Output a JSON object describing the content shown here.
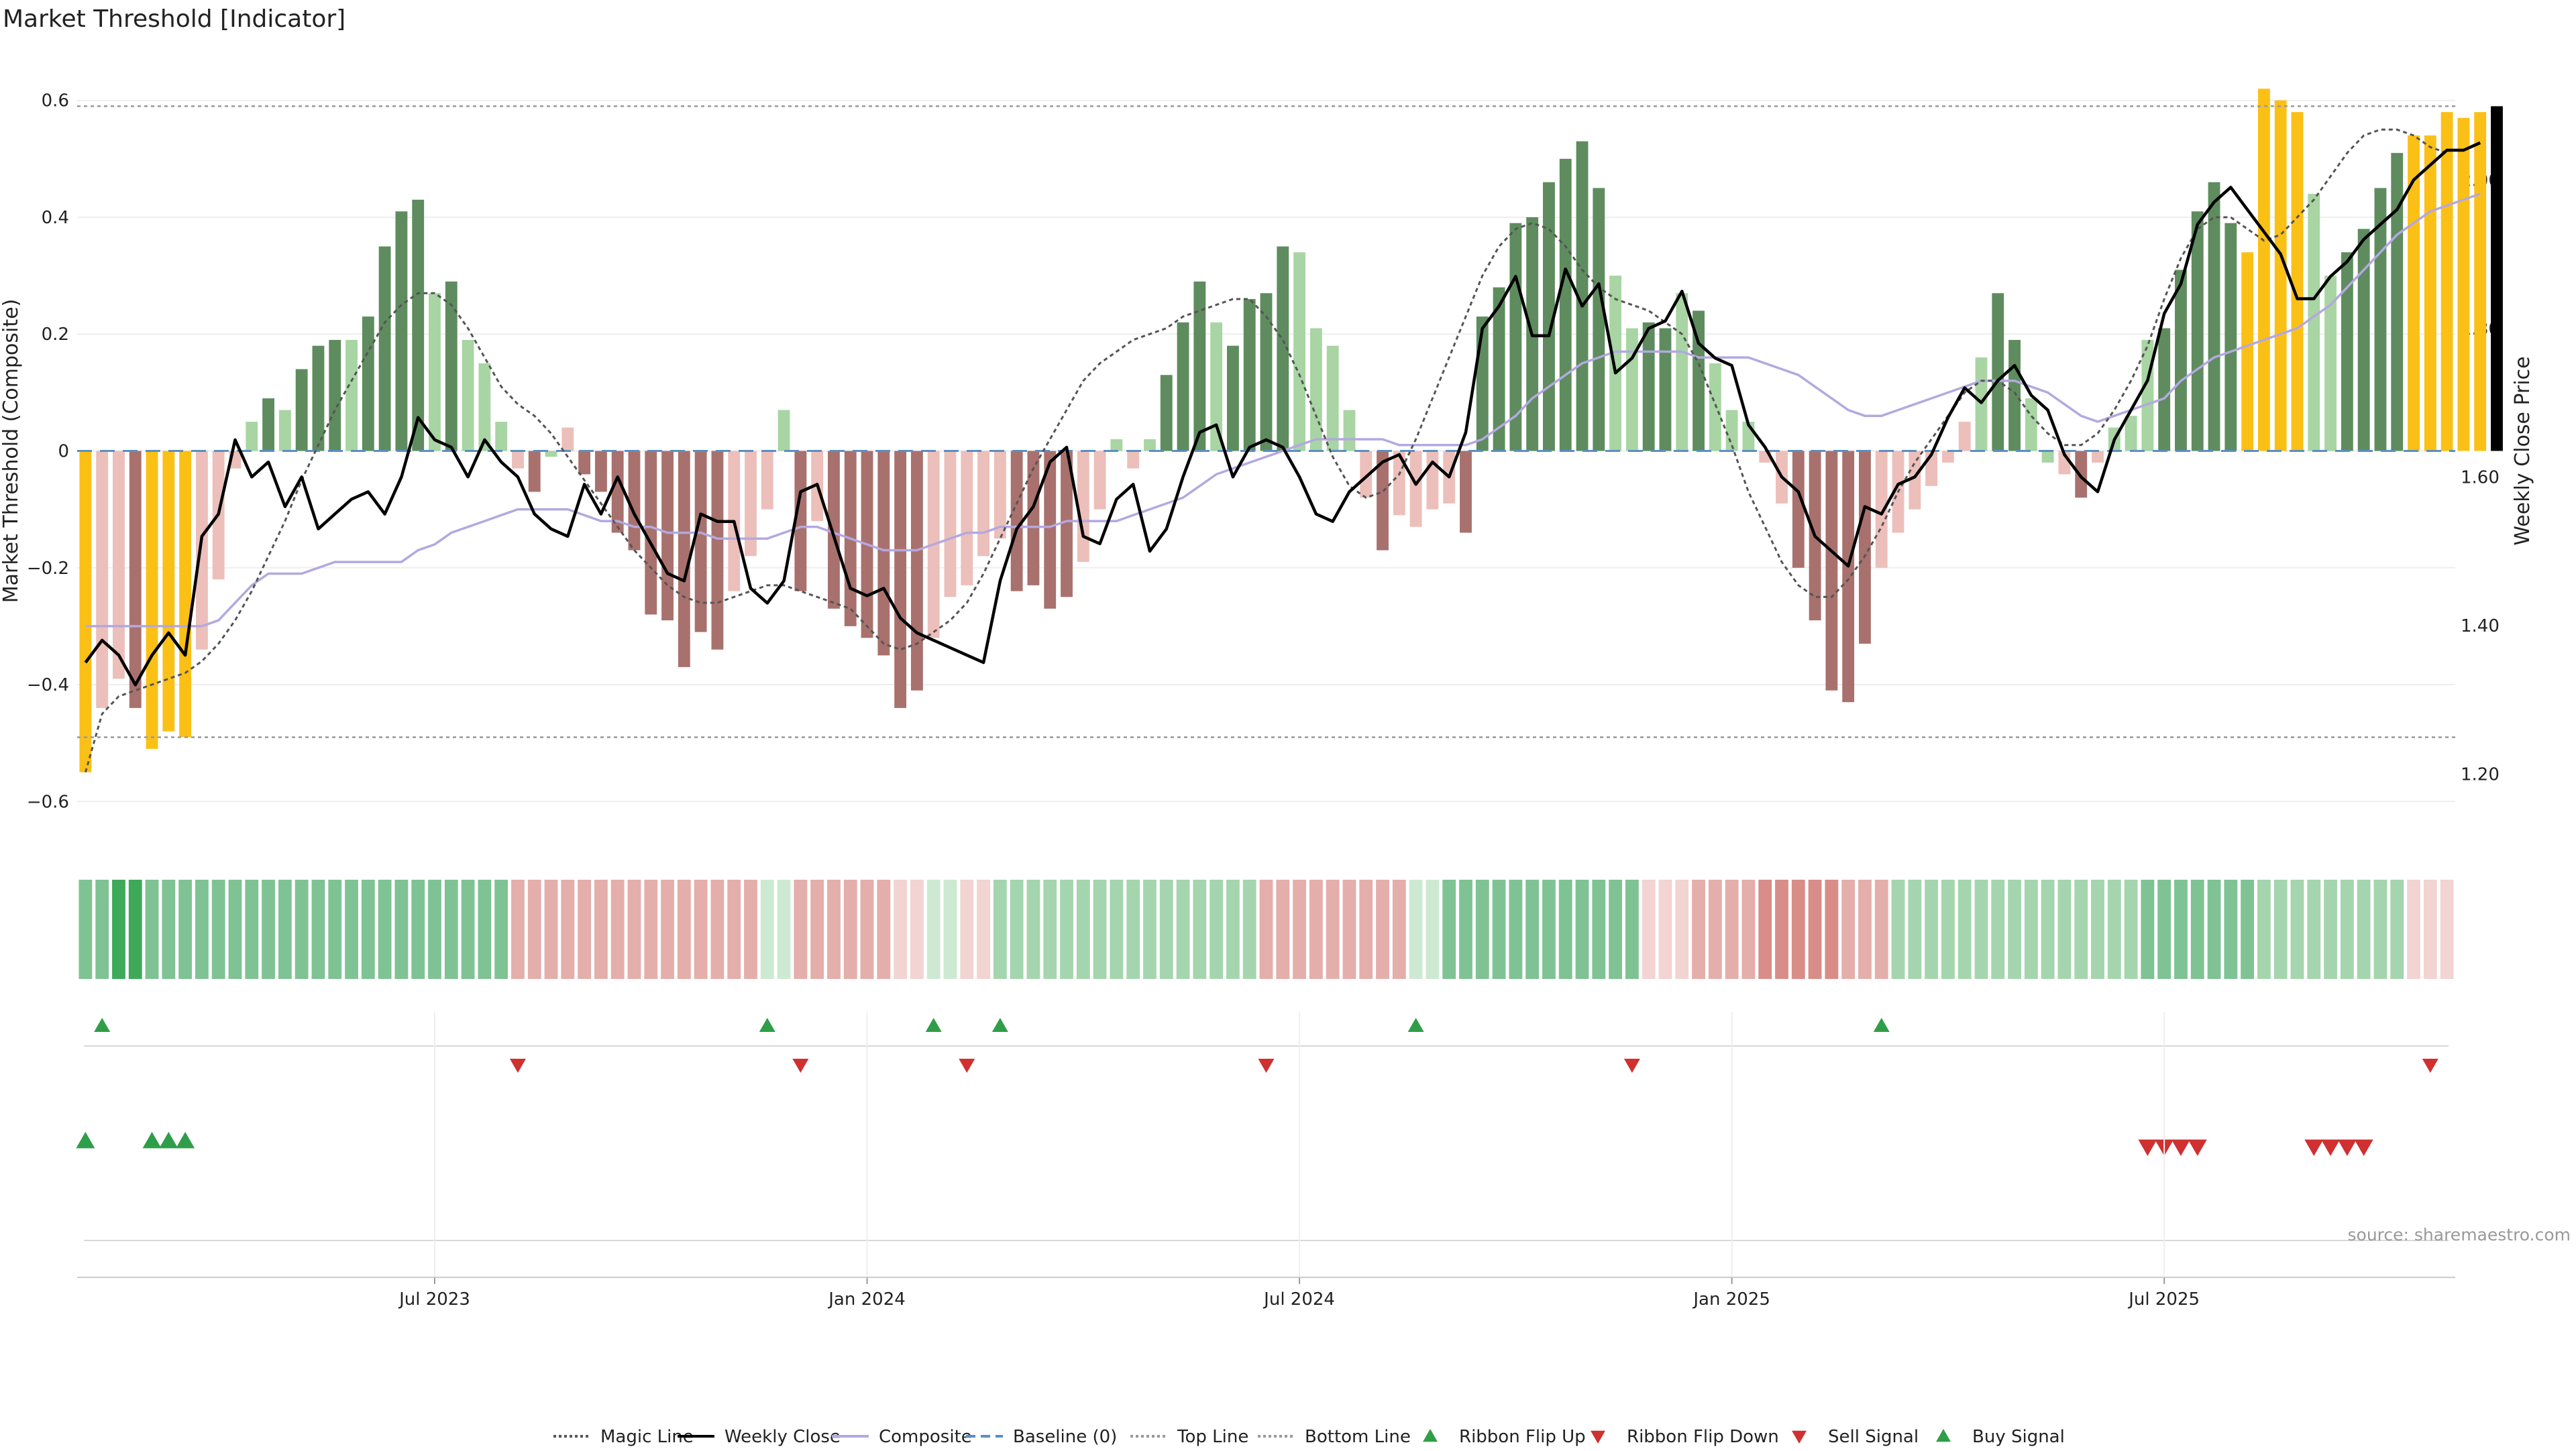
{
  "title": "Market Threshold [Indicator]",
  "source": "source: sharemaestro.com",
  "colors": {
    "bar_strong_pos": "#5e8c5e",
    "bar_weak_pos": "#a8d5a3",
    "bar_strong_neg": "#a8716d",
    "bar_weak_neg": "#ecbfba",
    "bar_extreme": "#fbc016",
    "price": "#000000",
    "composite": "#b4a8e0",
    "magic": "#555555",
    "baseline": "#5a8fc2",
    "threshold": "#999999",
    "flip_up": "#2f9e48",
    "flip_down": "#d03030"
  },
  "legend": [
    {
      "label": "Magic Line",
      "kind": "dotted-line",
      "color": "#555555"
    },
    {
      "label": "Weekly Close",
      "kind": "solid-line",
      "color": "#000000"
    },
    {
      "label": "Composite",
      "kind": "solid-line",
      "color": "#b4a8e0"
    },
    {
      "label": "Baseline (0)",
      "kind": "dashed-line",
      "color": "#5a8fc2"
    },
    {
      "label": "Top Line",
      "kind": "dotted-line",
      "color": "#999999"
    },
    {
      "label": "Bottom Line",
      "kind": "dotted-line",
      "color": "#999999"
    },
    {
      "label": "Ribbon Flip Up",
      "kind": "triangle-up",
      "color": "#2f9e48"
    },
    {
      "label": "Ribbon Flip Down",
      "kind": "triangle-down",
      "color": "#d03030"
    },
    {
      "label": "Sell Signal",
      "kind": "triangle-down",
      "color": "#d03030"
    },
    {
      "label": "Buy Signal",
      "kind": "triangle-up",
      "color": "#2f9e48"
    }
  ],
  "chart_data": {
    "type": "bar",
    "title": "Market Threshold [Indicator]",
    "ylabel": "Market Threshold (Composite)",
    "ylabel_right": "Weekly Close Price",
    "ylim": [
      -0.68,
      0.68
    ],
    "ylim_right": [
      1.1,
      2.17
    ],
    "yticks": [
      -0.6,
      -0.4,
      -0.2,
      0,
      0.2,
      0.4,
      0.6
    ],
    "yticks_labels": [
      "−0.6",
      "−0.4",
      "−0.2",
      "0",
      "0.2",
      "0.4",
      "0.6"
    ],
    "yticks_right": [
      1.2,
      1.4,
      1.6,
      1.8,
      2.0
    ],
    "yticks_right_labels": [
      "1.20",
      "1.40",
      "1.60",
      "1.80",
      "2.00"
    ],
    "x_dates": {
      "start": "2023-03-06",
      "count": 143,
      "step_days": 7
    },
    "xticks": [
      {
        "index": 21,
        "label": "Jul 2023"
      },
      {
        "index": 47,
        "label": "Jan 2024"
      },
      {
        "index": 73,
        "label": "Jul 2024"
      },
      {
        "index": 99,
        "label": "Jan 2025"
      },
      {
        "index": 125,
        "label": "Jul 2025"
      }
    ],
    "top_line": 0.59,
    "bottom_line": -0.49,
    "baseline": 0,
    "threshold": [
      -0.55,
      -0.44,
      -0.39,
      -0.44,
      -0.51,
      -0.48,
      -0.49,
      -0.34,
      -0.22,
      -0.03,
      0.05,
      0.09,
      0.07,
      0.14,
      0.18,
      0.19,
      0.19,
      0.23,
      0.35,
      0.41,
      0.43,
      0.27,
      0.29,
      0.19,
      0.15,
      0.05,
      -0.03,
      -0.07,
      -0.01,
      0.04,
      -0.04,
      -0.07,
      -0.14,
      -0.17,
      -0.28,
      -0.29,
      -0.37,
      -0.31,
      -0.34,
      -0.24,
      -0.18,
      -0.1,
      0.07,
      -0.24,
      -0.12,
      -0.27,
      -0.3,
      -0.32,
      -0.35,
      -0.44,
      -0.41,
      -0.32,
      -0.25,
      -0.23,
      -0.18,
      -0.15,
      -0.24,
      -0.23,
      -0.27,
      -0.25,
      -0.19,
      -0.1,
      0.02,
      -0.03,
      0.02,
      0.13,
      0.22,
      0.29,
      0.22,
      0.18,
      0.26,
      0.27,
      0.35,
      0.34,
      0.21,
      0.18,
      0.07,
      -0.08,
      -0.17,
      -0.11,
      -0.13,
      -0.1,
      -0.09,
      -0.14,
      0.23,
      0.28,
      0.39,
      0.4,
      0.46,
      0.5,
      0.53,
      0.45,
      0.3,
      0.21,
      0.22,
      0.21,
      0.27,
      0.24,
      0.15,
      0.07,
      0.05,
      -0.02,
      -0.09,
      -0.2,
      -0.29,
      -0.41,
      -0.43,
      -0.33,
      -0.2,
      -0.14,
      -0.1,
      -0.06,
      -0.02,
      0.05,
      0.16,
      0.27,
      0.19,
      0.09,
      -0.02,
      -0.04,
      -0.08,
      -0.02,
      0.04,
      0.06,
      0.19,
      0.21,
      0.31,
      0.41,
      0.46,
      0.39,
      0.34,
      0.62,
      0.6,
      0.58,
      0.44,
      0.3,
      0.34,
      0.38,
      0.45,
      0.51,
      0.54,
      0.54,
      0.58,
      0.57,
      0.58,
      0.59
    ],
    "bar_state": [
      4,
      3,
      3,
      2,
      4,
      4,
      4,
      3,
      3,
      3,
      1,
      0,
      1,
      0,
      0,
      0,
      1,
      0,
      0,
      0,
      0,
      1,
      0,
      1,
      1,
      1,
      3,
      2,
      1,
      3,
      2,
      2,
      2,
      2,
      2,
      2,
      2,
      2,
      2,
      3,
      3,
      3,
      1,
      2,
      3,
      2,
      2,
      2,
      2,
      2,
      2,
      3,
      3,
      3,
      3,
      3,
      2,
      2,
      2,
      2,
      3,
      3,
      1,
      3,
      1,
      0,
      0,
      0,
      1,
      0,
      0,
      0,
      0,
      1,
      1,
      1,
      1,
      3,
      2,
      3,
      3,
      3,
      3,
      2,
      0,
      0,
      0,
      0,
      0,
      0,
      0,
      0,
      1,
      1,
      0,
      0,
      1,
      0,
      1,
      1,
      1,
      3,
      3,
      2,
      2,
      2,
      2,
      2,
      3,
      3,
      3,
      3,
      3,
      3,
      1,
      0,
      0,
      1,
      1,
      3,
      2,
      3,
      1,
      1,
      1,
      0,
      0,
      0,
      0,
      0,
      4,
      4,
      4,
      4,
      1,
      1,
      0,
      0,
      0,
      0,
      4,
      4,
      4,
      4,
      4
    ],
    "price": [
      1.35,
      1.38,
      1.36,
      1.32,
      1.36,
      1.39,
      1.36,
      1.52,
      1.55,
      1.65,
      1.6,
      1.62,
      1.56,
      1.6,
      1.53,
      1.55,
      1.57,
      1.58,
      1.55,
      1.6,
      1.68,
      1.65,
      1.64,
      1.6,
      1.65,
      1.62,
      1.6,
      1.55,
      1.53,
      1.52,
      1.59,
      1.55,
      1.6,
      1.55,
      1.51,
      1.47,
      1.46,
      1.55,
      1.54,
      1.54,
      1.45,
      1.43,
      1.46,
      1.58,
      1.59,
      1.52,
      1.45,
      1.44,
      1.45,
      1.41,
      1.39,
      1.38,
      1.37,
      1.36,
      1.35,
      1.46,
      1.53,
      1.56,
      1.62,
      1.64,
      1.52,
      1.51,
      1.57,
      1.59,
      1.5,
      1.53,
      1.6,
      1.66,
      1.67,
      1.6,
      1.64,
      1.65,
      1.64,
      1.6,
      1.55,
      1.54,
      1.58,
      1.6,
      1.62,
      1.63,
      1.59,
      1.62,
      1.6,
      1.66,
      1.8,
      1.83,
      1.87,
      1.79,
      1.79,
      1.88,
      1.83,
      1.86,
      1.74,
      1.76,
      1.8,
      1.81,
      1.85,
      1.78,
      1.76,
      1.75,
      1.67,
      1.64,
      1.6,
      1.58,
      1.52,
      1.5,
      1.48,
      1.56,
      1.55,
      1.59,
      1.6,
      1.63,
      1.68,
      1.72,
      1.7,
      1.73,
      1.75,
      1.71,
      1.69,
      1.63,
      1.6,
      1.58,
      1.65,
      1.69,
      1.73,
      1.82,
      1.86,
      1.94,
      1.97,
      1.99,
      1.96,
      1.93,
      1.9,
      1.84,
      1.84,
      1.87,
      1.89,
      1.92,
      1.94,
      1.96,
      2.0,
      2.02,
      2.04,
      2.04,
      2.05
    ],
    "composite": [
      -0.3,
      -0.3,
      -0.3,
      -0.3,
      -0.3,
      -0.3,
      -0.3,
      -0.3,
      -0.29,
      -0.26,
      -0.23,
      -0.21,
      -0.21,
      -0.21,
      -0.2,
      -0.19,
      -0.19,
      -0.19,
      -0.19,
      -0.19,
      -0.17,
      -0.16,
      -0.14,
      -0.13,
      -0.12,
      -0.11,
      -0.1,
      -0.1,
      -0.1,
      -0.1,
      -0.11,
      -0.12,
      -0.12,
      -0.13,
      -0.13,
      -0.14,
      -0.14,
      -0.14,
      -0.15,
      -0.15,
      -0.15,
      -0.15,
      -0.14,
      -0.13,
      -0.13,
      -0.14,
      -0.15,
      -0.16,
      -0.17,
      -0.17,
      -0.17,
      -0.16,
      -0.15,
      -0.14,
      -0.14,
      -0.13,
      -0.13,
      -0.13,
      -0.13,
      -0.12,
      -0.12,
      -0.12,
      -0.12,
      -0.11,
      -0.1,
      -0.09,
      -0.08,
      -0.06,
      -0.04,
      -0.03,
      -0.02,
      -0.01,
      0,
      0.01,
      0.02,
      0.02,
      0.02,
      0.02,
      0.02,
      0.01,
      0.01,
      0.01,
      0.01,
      0.01,
      0.02,
      0.04,
      0.06,
      0.09,
      0.11,
      0.13,
      0.15,
      0.16,
      0.17,
      0.17,
      0.17,
      0.17,
      0.17,
      0.16,
      0.16,
      0.16,
      0.16,
      0.15,
      0.14,
      0.13,
      0.11,
      0.09,
      0.07,
      0.06,
      0.06,
      0.07,
      0.08,
      0.09,
      0.1,
      0.11,
      0.12,
      0.12,
      0.12,
      0.11,
      0.1,
      0.08,
      0.06,
      0.05,
      0.06,
      0.07,
      0.08,
      0.09,
      0.12,
      0.14,
      0.16,
      0.17,
      0.18,
      0.19,
      0.2,
      0.21,
      0.23,
      0.25,
      0.28,
      0.31,
      0.34,
      0.37,
      0.39,
      0.41,
      0.42,
      0.43,
      0.44
    ],
    "magic": [
      -0.55,
      -0.45,
      -0.42,
      -0.41,
      -0.4,
      -0.39,
      -0.38,
      -0.36,
      -0.33,
      -0.29,
      -0.24,
      -0.18,
      -0.12,
      -0.05,
      0.01,
      0.07,
      0.12,
      0.17,
      0.22,
      0.25,
      0.27,
      0.27,
      0.25,
      0.21,
      0.16,
      0.11,
      0.08,
      0.06,
      0.03,
      -0.01,
      -0.05,
      -0.09,
      -0.13,
      -0.17,
      -0.2,
      -0.23,
      -0.25,
      -0.26,
      -0.26,
      -0.25,
      -0.24,
      -0.23,
      -0.23,
      -0.24,
      -0.25,
      -0.26,
      -0.27,
      -0.3,
      -0.33,
      -0.34,
      -0.33,
      -0.31,
      -0.29,
      -0.26,
      -0.21,
      -0.15,
      -0.09,
      -0.03,
      0.02,
      0.07,
      0.12,
      0.15,
      0.17,
      0.19,
      0.2,
      0.21,
      0.23,
      0.24,
      0.25,
      0.26,
      0.26,
      0.23,
      0.19,
      0.13,
      0.06,
      -0.01,
      -0.06,
      -0.08,
      -0.07,
      -0.04,
      0.02,
      0.09,
      0.16,
      0.23,
      0.3,
      0.35,
      0.38,
      0.39,
      0.38,
      0.35,
      0.31,
      0.28,
      0.26,
      0.25,
      0.24,
      0.22,
      0.2,
      0.15,
      0.08,
      0.01,
      -0.07,
      -0.13,
      -0.19,
      -0.23,
      -0.25,
      -0.25,
      -0.22,
      -0.18,
      -0.13,
      -0.07,
      -0.02,
      0.02,
      0.06,
      0.1,
      0.12,
      0.12,
      0.1,
      0.06,
      0.03,
      0.01,
      0.01,
      0.03,
      0.07,
      0.12,
      0.18,
      0.26,
      0.33,
      0.38,
      0.4,
      0.4,
      0.38,
      0.36,
      0.37,
      0.4,
      0.43,
      0.47,
      0.51,
      0.54,
      0.55,
      0.55,
      0.54,
      0.52,
      0.51
    ],
    "ribbon": [
      3,
      3,
      4,
      4,
      3,
      3,
      3,
      3,
      3,
      3,
      3,
      3,
      3,
      3,
      3,
      3,
      3,
      3,
      3,
      3,
      3,
      3,
      3,
      3,
      3,
      3,
      -2,
      -2,
      -2,
      -2,
      -2,
      -2,
      -2,
      -2,
      -2,
      -2,
      -2,
      -2,
      -2,
      -2,
      -2,
      1,
      1,
      -2,
      -2,
      -2,
      -2,
      -2,
      -2,
      -1,
      -1,
      1,
      1,
      -1,
      -1,
      2,
      2,
      2,
      2,
      2,
      2,
      2,
      2,
      2,
      2,
      2,
      2,
      2,
      2,
      2,
      2,
      -2,
      -2,
      -2,
      -2,
      -2,
      -2,
      -2,
      -2,
      -2,
      1,
      1,
      3,
      3,
      3,
      3,
      3,
      3,
      3,
      3,
      3,
      3,
      3,
      3,
      -1,
      -1,
      -1,
      -2,
      -2,
      -2,
      -2,
      -3,
      -3,
      -3,
      -3,
      -3,
      -2,
      -2,
      -2,
      2,
      2,
      2,
      2,
      2,
      2,
      2,
      2,
      2,
      2,
      2,
      2,
      2,
      2,
      2,
      3,
      3,
      3,
      3,
      3,
      3,
      3,
      2,
      2,
      2,
      2,
      2,
      2,
      2,
      2,
      2,
      -1,
      -1,
      -1
    ],
    "ribbon_flip_up": [
      1,
      41,
      51,
      55,
      80,
      108
    ],
    "ribbon_flip_down": [
      26,
      43,
      53,
      71,
      93,
      141
    ],
    "buy_signals": [
      0,
      4,
      5,
      6
    ],
    "sell_signals": [
      124,
      125,
      126,
      127,
      134,
      135,
      136,
      137
    ]
  }
}
